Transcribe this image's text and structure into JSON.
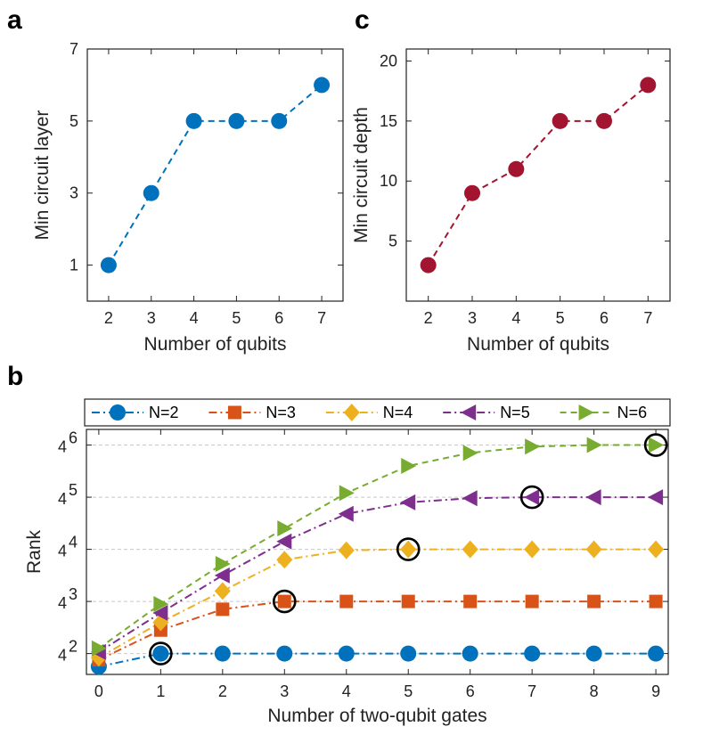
{
  "chart_data": [
    {
      "panel": "a",
      "type": "line",
      "x": [
        2,
        3,
        4,
        5,
        6,
        7
      ],
      "series": [
        {
          "name": "Min circuit layer",
          "values": [
            1,
            3,
            5,
            5,
            5,
            6
          ],
          "color": "#0072BD",
          "marker": "circle"
        }
      ],
      "xlabel": "Number of qubits",
      "ylabel": "Min circuit layer",
      "xlim": [
        1.5,
        7.5
      ],
      "ylim": [
        0,
        7
      ],
      "xticks": [
        "2",
        "3",
        "4",
        "5",
        "6",
        "7"
      ],
      "yticks": [
        "1",
        "3",
        "5",
        "7"
      ],
      "grid": false
    },
    {
      "panel": "c",
      "type": "line",
      "x": [
        2,
        3,
        4,
        5,
        6,
        7
      ],
      "series": [
        {
          "name": "Min circuit depth",
          "values": [
            3,
            9,
            11,
            15,
            15,
            18
          ],
          "color": "#A2142F",
          "marker": "circle"
        }
      ],
      "xlabel": "Number of qubits",
      "ylabel": "Min circuit depth",
      "xlim": [
        1.5,
        7.5
      ],
      "ylim": [
        0,
        21
      ],
      "xticks": [
        "2",
        "3",
        "4",
        "5",
        "6",
        "7"
      ],
      "yticks": [
        "5",
        "10",
        "15",
        "20"
      ],
      "grid": false
    },
    {
      "panel": "b",
      "type": "line",
      "yscale": "log4",
      "x": [
        0,
        1,
        2,
        3,
        4,
        5,
        6,
        7,
        8,
        9
      ],
      "series": [
        {
          "name": "N=2",
          "exponents": [
            1.75,
            2,
            2,
            2,
            2,
            2,
            2,
            2,
            2,
            2
          ],
          "color": "#0072BD",
          "marker": "circle",
          "line": "dashdot"
        },
        {
          "name": "N=3",
          "exponents": [
            1.88,
            2.45,
            2.85,
            3,
            3,
            3,
            3,
            3,
            3,
            3
          ],
          "color": "#D95319",
          "marker": "square",
          "line": "dashdot"
        },
        {
          "name": "N=4",
          "exponents": [
            1.92,
            2.6,
            3.2,
            3.8,
            3.98,
            4,
            4,
            4,
            4,
            4
          ],
          "color": "#EDB120",
          "marker": "diamond",
          "line": "dashdot"
        },
        {
          "name": "N=5",
          "exponents": [
            2.03,
            2.78,
            3.5,
            4.15,
            4.68,
            4.9,
            4.98,
            5,
            5,
            5
          ],
          "color": "#7E2F8E",
          "marker": "triangle-left",
          "line": "dashdot"
        },
        {
          "name": "N=6",
          "exponents": [
            2.1,
            2.95,
            3.72,
            4.4,
            5.08,
            5.6,
            5.85,
            5.97,
            6,
            6
          ],
          "color": "#77AC30",
          "marker": "triangle-right",
          "line": "dashed"
        }
      ],
      "highlighted_points": [
        {
          "series": "N=2",
          "x": 1
        },
        {
          "series": "N=3",
          "x": 3
        },
        {
          "series": "N=4",
          "x": 5
        },
        {
          "series": "N=5",
          "x": 7
        },
        {
          "series": "N=6",
          "x": 9
        }
      ],
      "xlabel": "Number of two-qubit gates",
      "ylabel": "Rank",
      "xlim": [
        -0.2,
        9.2
      ],
      "ylim_exponent": [
        1.6,
        6.3
      ],
      "xticks": [
        "0",
        "1",
        "2",
        "3",
        "4",
        "5",
        "6",
        "7",
        "8",
        "9"
      ],
      "ytick_base": "4",
      "ytick_exponents": [
        "2",
        "3",
        "4",
        "5",
        "6"
      ],
      "grid": "horizontal at tick levels",
      "legend_position": "top, outside"
    }
  ],
  "panel_labels": {
    "a": "a",
    "b": "b",
    "c": "c"
  }
}
